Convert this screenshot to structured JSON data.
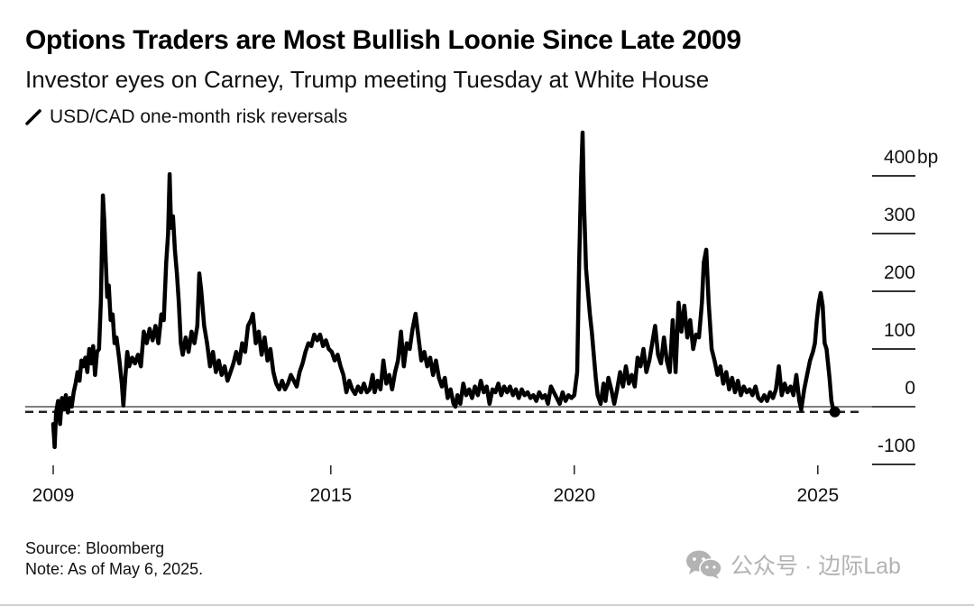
{
  "header": {
    "title": "Options Traders are Most Bullish Loonie Since Late 2009",
    "subtitle": "Investor eyes on Carney, Trump meeting Tuesday at White House",
    "legend_label": "USD/CAD one-month risk reversals",
    "legend_icon": "line-swatch-icon"
  },
  "footer": {
    "source": "Source: Bloomberg",
    "note": "Note: As of May 6, 2025."
  },
  "watermark": {
    "icon": "wechat-icon",
    "text": "公众号 · 边际Lab"
  },
  "colors": {
    "line": "#000000",
    "grid": "#333333",
    "text": "#111111",
    "watermark": "#b3b3b3"
  },
  "chart_data": {
    "type": "line",
    "title": "Options Traders are Most Bullish Loonie Since Late 2009",
    "subtitle": "Investor eyes on Carney, Trump meeting Tuesday at White House",
    "xlabel": "",
    "ylabel": "bp",
    "y_unit_suffix": "bp",
    "ylim": [
      -100,
      400
    ],
    "yticks": [
      400,
      300,
      200,
      100,
      0,
      -100
    ],
    "ytick_labels": [
      "400",
      "300",
      "200",
      "100",
      "0",
      "-100"
    ],
    "xlim": [
      2009.3,
      2025.35
    ],
    "xticks": [
      2009.3,
      2015.0,
      2020.0,
      2025.0
    ],
    "xtick_labels": [
      "2009",
      "2015",
      "2020",
      "2025"
    ],
    "grid": false,
    "legend": "top-left",
    "reference_lines": [
      {
        "name": "zero-line",
        "value": 0,
        "style": "solid"
      },
      {
        "name": "current-level-line",
        "value": -9,
        "style": "dashed"
      }
    ],
    "end_marker": {
      "x": 2025.35,
      "y": -9
    },
    "series": [
      {
        "name": "USD/CAD one-month risk reversals",
        "points": [
          [
            2009.3,
            -30
          ],
          [
            2009.33,
            -70
          ],
          [
            2009.36,
            -10
          ],
          [
            2009.4,
            10
          ],
          [
            2009.44,
            -30
          ],
          [
            2009.48,
            15
          ],
          [
            2009.52,
            -5
          ],
          [
            2009.56,
            20
          ],
          [
            2009.6,
            -10
          ],
          [
            2009.64,
            15
          ],
          [
            2009.68,
            0
          ],
          [
            2009.72,
            25
          ],
          [
            2009.76,
            40
          ],
          [
            2009.8,
            60
          ],
          [
            2009.84,
            45
          ],
          [
            2009.88,
            80
          ],
          [
            2009.92,
            70
          ],
          [
            2009.96,
            85
          ],
          [
            2010.0,
            60
          ],
          [
            2010.04,
            100
          ],
          [
            2010.08,
            75
          ],
          [
            2010.12,
            105
          ],
          [
            2010.16,
            55
          ],
          [
            2010.2,
            95
          ],
          [
            2010.24,
            100
          ],
          [
            2010.28,
            185
          ],
          [
            2010.32,
            366
          ],
          [
            2010.35,
            320
          ],
          [
            2010.38,
            250
          ],
          [
            2010.41,
            190
          ],
          [
            2010.44,
            210
          ],
          [
            2010.48,
            150
          ],
          [
            2010.52,
            160
          ],
          [
            2010.56,
            110
          ],
          [
            2010.6,
            120
          ],
          [
            2010.66,
            80
          ],
          [
            2010.71,
            40
          ],
          [
            2010.74,
            2
          ],
          [
            2010.78,
            50
          ],
          [
            2010.82,
            95
          ],
          [
            2010.86,
            70
          ],
          [
            2010.92,
            85
          ],
          [
            2010.98,
            75
          ],
          [
            2011.04,
            90
          ],
          [
            2011.1,
            70
          ],
          [
            2011.16,
            130
          ],
          [
            2011.22,
            110
          ],
          [
            2011.28,
            135
          ],
          [
            2011.34,
            115
          ],
          [
            2011.4,
            140
          ],
          [
            2011.46,
            110
          ],
          [
            2011.52,
            160
          ],
          [
            2011.57,
            150
          ],
          [
            2011.62,
            250
          ],
          [
            2011.66,
            300
          ],
          [
            2011.69,
            403
          ],
          [
            2011.72,
            310
          ],
          [
            2011.76,
            330
          ],
          [
            2011.8,
            270
          ],
          [
            2011.84,
            230
          ],
          [
            2011.88,
            180
          ],
          [
            2011.92,
            110
          ],
          [
            2011.96,
            90
          ],
          [
            2012.02,
            120
          ],
          [
            2012.08,
            95
          ],
          [
            2012.14,
            130
          ],
          [
            2012.2,
            110
          ],
          [
            2012.26,
            140
          ],
          [
            2012.3,
            231
          ],
          [
            2012.34,
            200
          ],
          [
            2012.4,
            140
          ],
          [
            2012.46,
            110
          ],
          [
            2012.52,
            70
          ],
          [
            2012.58,
            95
          ],
          [
            2012.64,
            60
          ],
          [
            2012.7,
            80
          ],
          [
            2012.76,
            55
          ],
          [
            2012.82,
            70
          ],
          [
            2012.88,
            45
          ],
          [
            2012.94,
            60
          ],
          [
            2013.0,
            75
          ],
          [
            2013.06,
            95
          ],
          [
            2013.12,
            75
          ],
          [
            2013.18,
            110
          ],
          [
            2013.24,
            95
          ],
          [
            2013.3,
            140
          ],
          [
            2013.36,
            150
          ],
          [
            2013.4,
            161
          ],
          [
            2013.46,
            110
          ],
          [
            2013.52,
            130
          ],
          [
            2013.58,
            90
          ],
          [
            2013.64,
            120
          ],
          [
            2013.7,
            80
          ],
          [
            2013.76,
            100
          ],
          [
            2013.82,
            60
          ],
          [
            2013.88,
            40
          ],
          [
            2013.94,
            30
          ],
          [
            2014.0,
            45
          ],
          [
            2014.06,
            30
          ],
          [
            2014.12,
            40
          ],
          [
            2014.18,
            55
          ],
          [
            2014.24,
            45
          ],
          [
            2014.3,
            35
          ],
          [
            2014.36,
            60
          ],
          [
            2014.42,
            75
          ],
          [
            2014.48,
            95
          ],
          [
            2014.54,
            110
          ],
          [
            2014.6,
            105
          ],
          [
            2014.66,
            125
          ],
          [
            2014.72,
            115
          ],
          [
            2014.78,
            125
          ],
          [
            2014.84,
            105
          ],
          [
            2014.9,
            115
          ],
          [
            2014.96,
            100
          ],
          [
            2015.02,
            95
          ],
          [
            2015.08,
            80
          ],
          [
            2015.14,
            90
          ],
          [
            2015.2,
            70
          ],
          [
            2015.26,
            55
          ],
          [
            2015.32,
            25
          ],
          [
            2015.38,
            45
          ],
          [
            2015.44,
            30
          ],
          [
            2015.5,
            22
          ],
          [
            2015.56,
            35
          ],
          [
            2015.62,
            25
          ],
          [
            2015.68,
            40
          ],
          [
            2015.74,
            25
          ],
          [
            2015.8,
            30
          ],
          [
            2015.86,
            55
          ],
          [
            2015.9,
            25
          ],
          [
            2015.96,
            45
          ],
          [
            2016.02,
            30
          ],
          [
            2016.08,
            80
          ],
          [
            2016.14,
            40
          ],
          [
            2016.2,
            55
          ],
          [
            2016.26,
            30
          ],
          [
            2016.32,
            60
          ],
          [
            2016.38,
            80
          ],
          [
            2016.44,
            130
          ],
          [
            2016.5,
            70
          ],
          [
            2016.56,
            110
          ],
          [
            2016.62,
            100
          ],
          [
            2016.68,
            135
          ],
          [
            2016.74,
            161
          ],
          [
            2016.8,
            120
          ],
          [
            2016.86,
            80
          ],
          [
            2016.92,
            95
          ],
          [
            2016.98,
            70
          ],
          [
            2017.04,
            85
          ],
          [
            2017.1,
            55
          ],
          [
            2017.16,
            80
          ],
          [
            2017.22,
            50
          ],
          [
            2017.28,
            35
          ],
          [
            2017.34,
            50
          ],
          [
            2017.4,
            15
          ],
          [
            2017.46,
            30
          ],
          [
            2017.52,
            5
          ],
          [
            2017.56,
            0
          ],
          [
            2017.6,
            20
          ],
          [
            2017.66,
            5
          ],
          [
            2017.72,
            40
          ],
          [
            2017.78,
            20
          ],
          [
            2017.84,
            30
          ],
          [
            2017.9,
            15
          ],
          [
            2017.96,
            35
          ],
          [
            2018.02,
            20
          ],
          [
            2018.08,
            45
          ],
          [
            2018.14,
            25
          ],
          [
            2018.2,
            35
          ],
          [
            2018.26,
            5
          ],
          [
            2018.32,
            30
          ],
          [
            2018.38,
            25
          ],
          [
            2018.44,
            40
          ],
          [
            2018.5,
            20
          ],
          [
            2018.56,
            35
          ],
          [
            2018.62,
            25
          ],
          [
            2018.68,
            35
          ],
          [
            2018.74,
            20
          ],
          [
            2018.8,
            30
          ],
          [
            2018.86,
            15
          ],
          [
            2018.92,
            30
          ],
          [
            2018.98,
            20
          ],
          [
            2019.04,
            25
          ],
          [
            2019.1,
            15
          ],
          [
            2019.16,
            20
          ],
          [
            2019.22,
            10
          ],
          [
            2019.28,
            25
          ],
          [
            2019.34,
            15
          ],
          [
            2019.4,
            20
          ],
          [
            2019.46,
            5
          ],
          [
            2019.52,
            35
          ],
          [
            2019.58,
            25
          ],
          [
            2019.64,
            15
          ],
          [
            2019.7,
            5
          ],
          [
            2019.76,
            25
          ],
          [
            2019.82,
            10
          ],
          [
            2019.88,
            20
          ],
          [
            2019.94,
            15
          ],
          [
            2020.0,
            20
          ],
          [
            2020.06,
            60
          ],
          [
            2020.1,
            250
          ],
          [
            2020.14,
            400
          ],
          [
            2020.17,
            475
          ],
          [
            2020.2,
            350
          ],
          [
            2020.24,
            240
          ],
          [
            2020.28,
            200
          ],
          [
            2020.32,
            160
          ],
          [
            2020.36,
            130
          ],
          [
            2020.4,
            90
          ],
          [
            2020.44,
            50
          ],
          [
            2020.48,
            20
          ],
          [
            2020.54,
            5
          ],
          [
            2020.6,
            40
          ],
          [
            2020.64,
            10
          ],
          [
            2020.7,
            50
          ],
          [
            2020.76,
            30
          ],
          [
            2020.82,
            5
          ],
          [
            2020.88,
            30
          ],
          [
            2020.94,
            60
          ],
          [
            2021.0,
            35
          ],
          [
            2021.06,
            70
          ],
          [
            2021.12,
            40
          ],
          [
            2021.18,
            55
          ],
          [
            2021.24,
            35
          ],
          [
            2021.3,
            85
          ],
          [
            2021.36,
            70
          ],
          [
            2021.42,
            100
          ],
          [
            2021.48,
            60
          ],
          [
            2021.54,
            80
          ],
          [
            2021.6,
            110
          ],
          [
            2021.66,
            140
          ],
          [
            2021.72,
            90
          ],
          [
            2021.78,
            75
          ],
          [
            2021.84,
            120
          ],
          [
            2021.9,
            80
          ],
          [
            2021.96,
            60
          ],
          [
            2022.02,
            150
          ],
          [
            2022.08,
            60
          ],
          [
            2022.14,
            180
          ],
          [
            2022.2,
            130
          ],
          [
            2022.26,
            175
          ],
          [
            2022.32,
            120
          ],
          [
            2022.38,
            150
          ],
          [
            2022.44,
            100
          ],
          [
            2022.5,
            125
          ],
          [
            2022.56,
            120
          ],
          [
            2022.62,
            180
          ],
          [
            2022.66,
            250
          ],
          [
            2022.71,
            272
          ],
          [
            2022.76,
            180
          ],
          [
            2022.82,
            100
          ],
          [
            2022.88,
            80
          ],
          [
            2022.94,
            55
          ],
          [
            2023.0,
            70
          ],
          [
            2023.06,
            40
          ],
          [
            2023.12,
            60
          ],
          [
            2023.18,
            30
          ],
          [
            2023.24,
            50
          ],
          [
            2023.3,
            25
          ],
          [
            2023.36,
            45
          ],
          [
            2023.42,
            20
          ],
          [
            2023.48,
            35
          ],
          [
            2023.54,
            25
          ],
          [
            2023.6,
            30
          ],
          [
            2023.66,
            20
          ],
          [
            2023.72,
            35
          ],
          [
            2023.78,
            15
          ],
          [
            2023.84,
            10
          ],
          [
            2023.9,
            20
          ],
          [
            2023.96,
            10
          ],
          [
            2024.02,
            25
          ],
          [
            2024.08,
            15
          ],
          [
            2024.14,
            30
          ],
          [
            2024.2,
            70
          ],
          [
            2024.26,
            20
          ],
          [
            2024.32,
            40
          ],
          [
            2024.38,
            25
          ],
          [
            2024.44,
            35
          ],
          [
            2024.5,
            20
          ],
          [
            2024.56,
            55
          ],
          [
            2024.62,
            10
          ],
          [
            2024.66,
            -5
          ],
          [
            2024.72,
            30
          ],
          [
            2024.78,
            55
          ],
          [
            2024.84,
            80
          ],
          [
            2024.9,
            95
          ],
          [
            2024.94,
            110
          ],
          [
            2024.98,
            150
          ],
          [
            2025.02,
            180
          ],
          [
            2025.06,
            197
          ],
          [
            2025.1,
            175
          ],
          [
            2025.14,
            110
          ],
          [
            2025.18,
            100
          ],
          [
            2025.24,
            50
          ],
          [
            2025.28,
            10
          ],
          [
            2025.32,
            -5
          ],
          [
            2025.35,
            -9
          ]
        ]
      }
    ]
  }
}
